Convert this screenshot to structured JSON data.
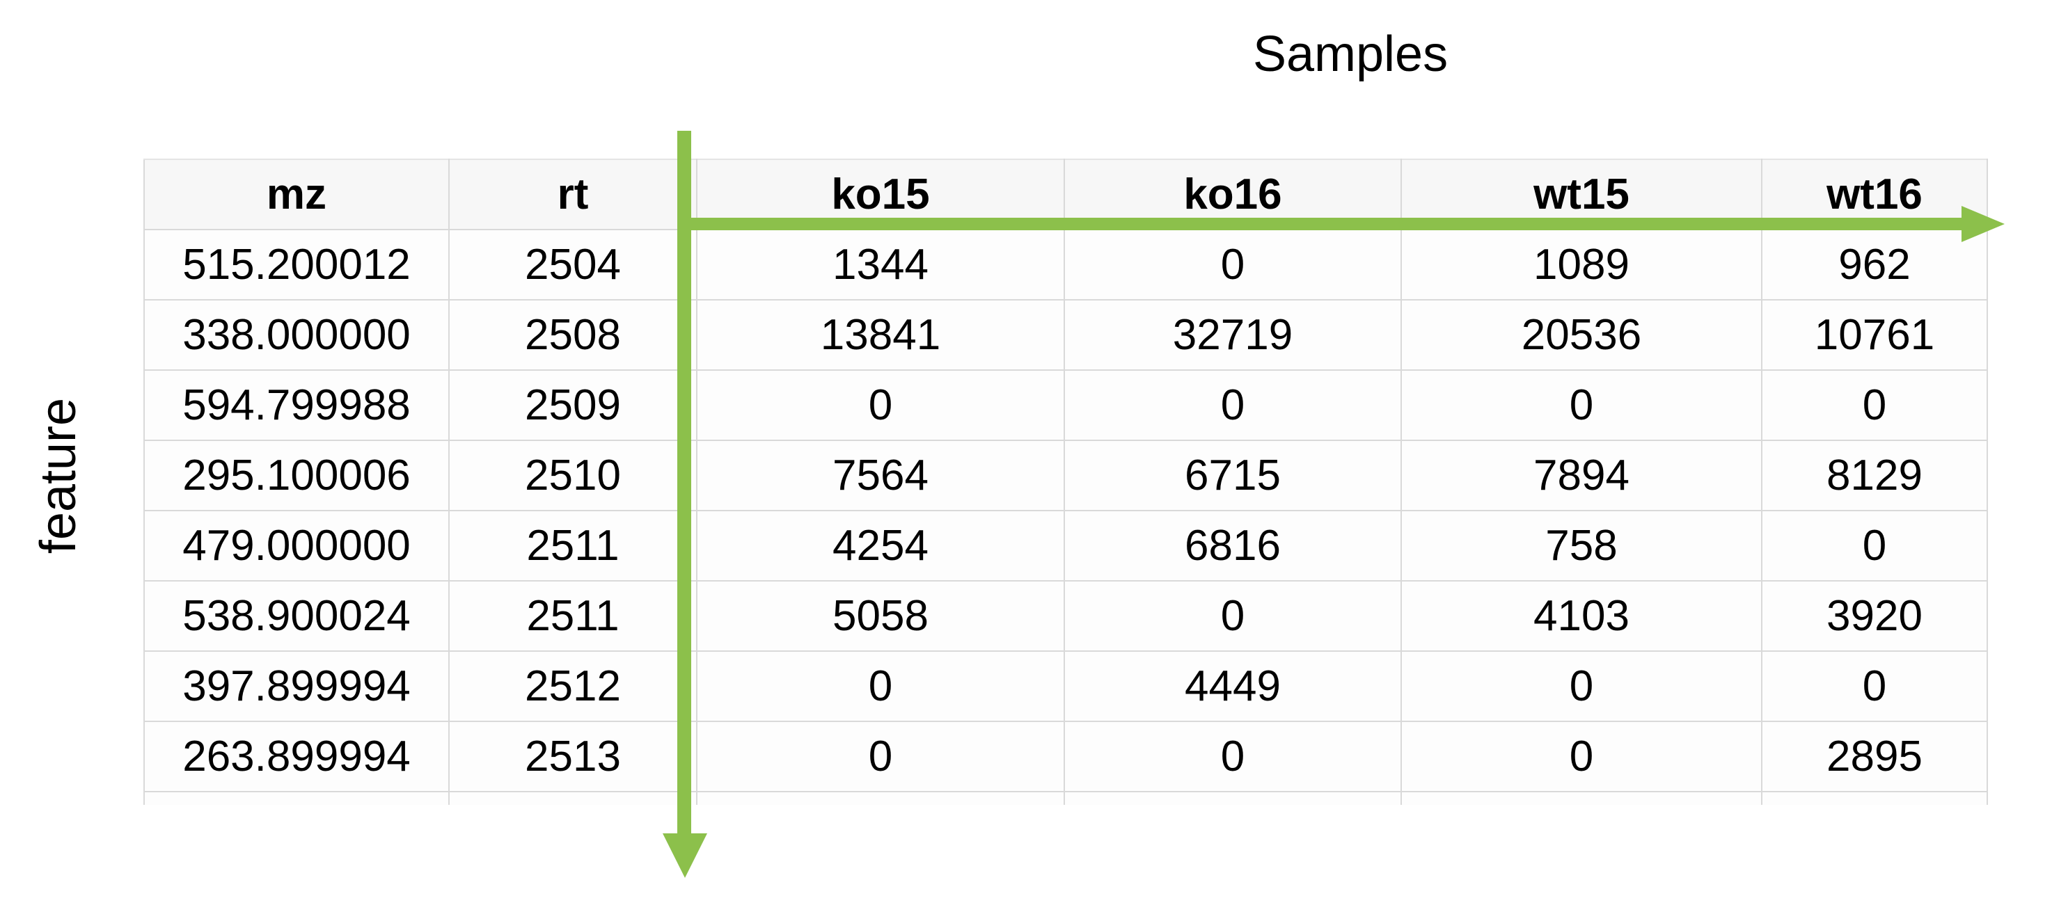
{
  "labels": {
    "samples": "Samples",
    "feature": "feature"
  },
  "colors": {
    "arrow": "#8CC04B",
    "grid": "#d9d9d9"
  },
  "table": {
    "headers": [
      "mz",
      "rt",
      "ko15",
      "ko16",
      "wt15",
      "wt16"
    ],
    "rows": [
      [
        "515.200012",
        "2504",
        "1344",
        "0",
        "1089",
        "962"
      ],
      [
        "338.000000",
        "2508",
        "13841",
        "32719",
        "20536",
        "10761"
      ],
      [
        "594.799988",
        "2509",
        "0",
        "0",
        "0",
        "0"
      ],
      [
        "295.100006",
        "2510",
        "7564",
        "6715",
        "7894",
        "8129"
      ],
      [
        "479.000000",
        "2511",
        "4254",
        "6816",
        "758",
        "0"
      ],
      [
        "538.900024",
        "2511",
        "5058",
        "0",
        "4103",
        "3920"
      ],
      [
        "397.899994",
        "2512",
        "0",
        "4449",
        "0",
        "0"
      ],
      [
        "263.899994",
        "2513",
        "0",
        "0",
        "0",
        "2895"
      ]
    ]
  },
  "arrows": [
    {
      "name": "samples-arrow",
      "direction": "right"
    },
    {
      "name": "feature-arrow",
      "direction": "down"
    }
  ]
}
